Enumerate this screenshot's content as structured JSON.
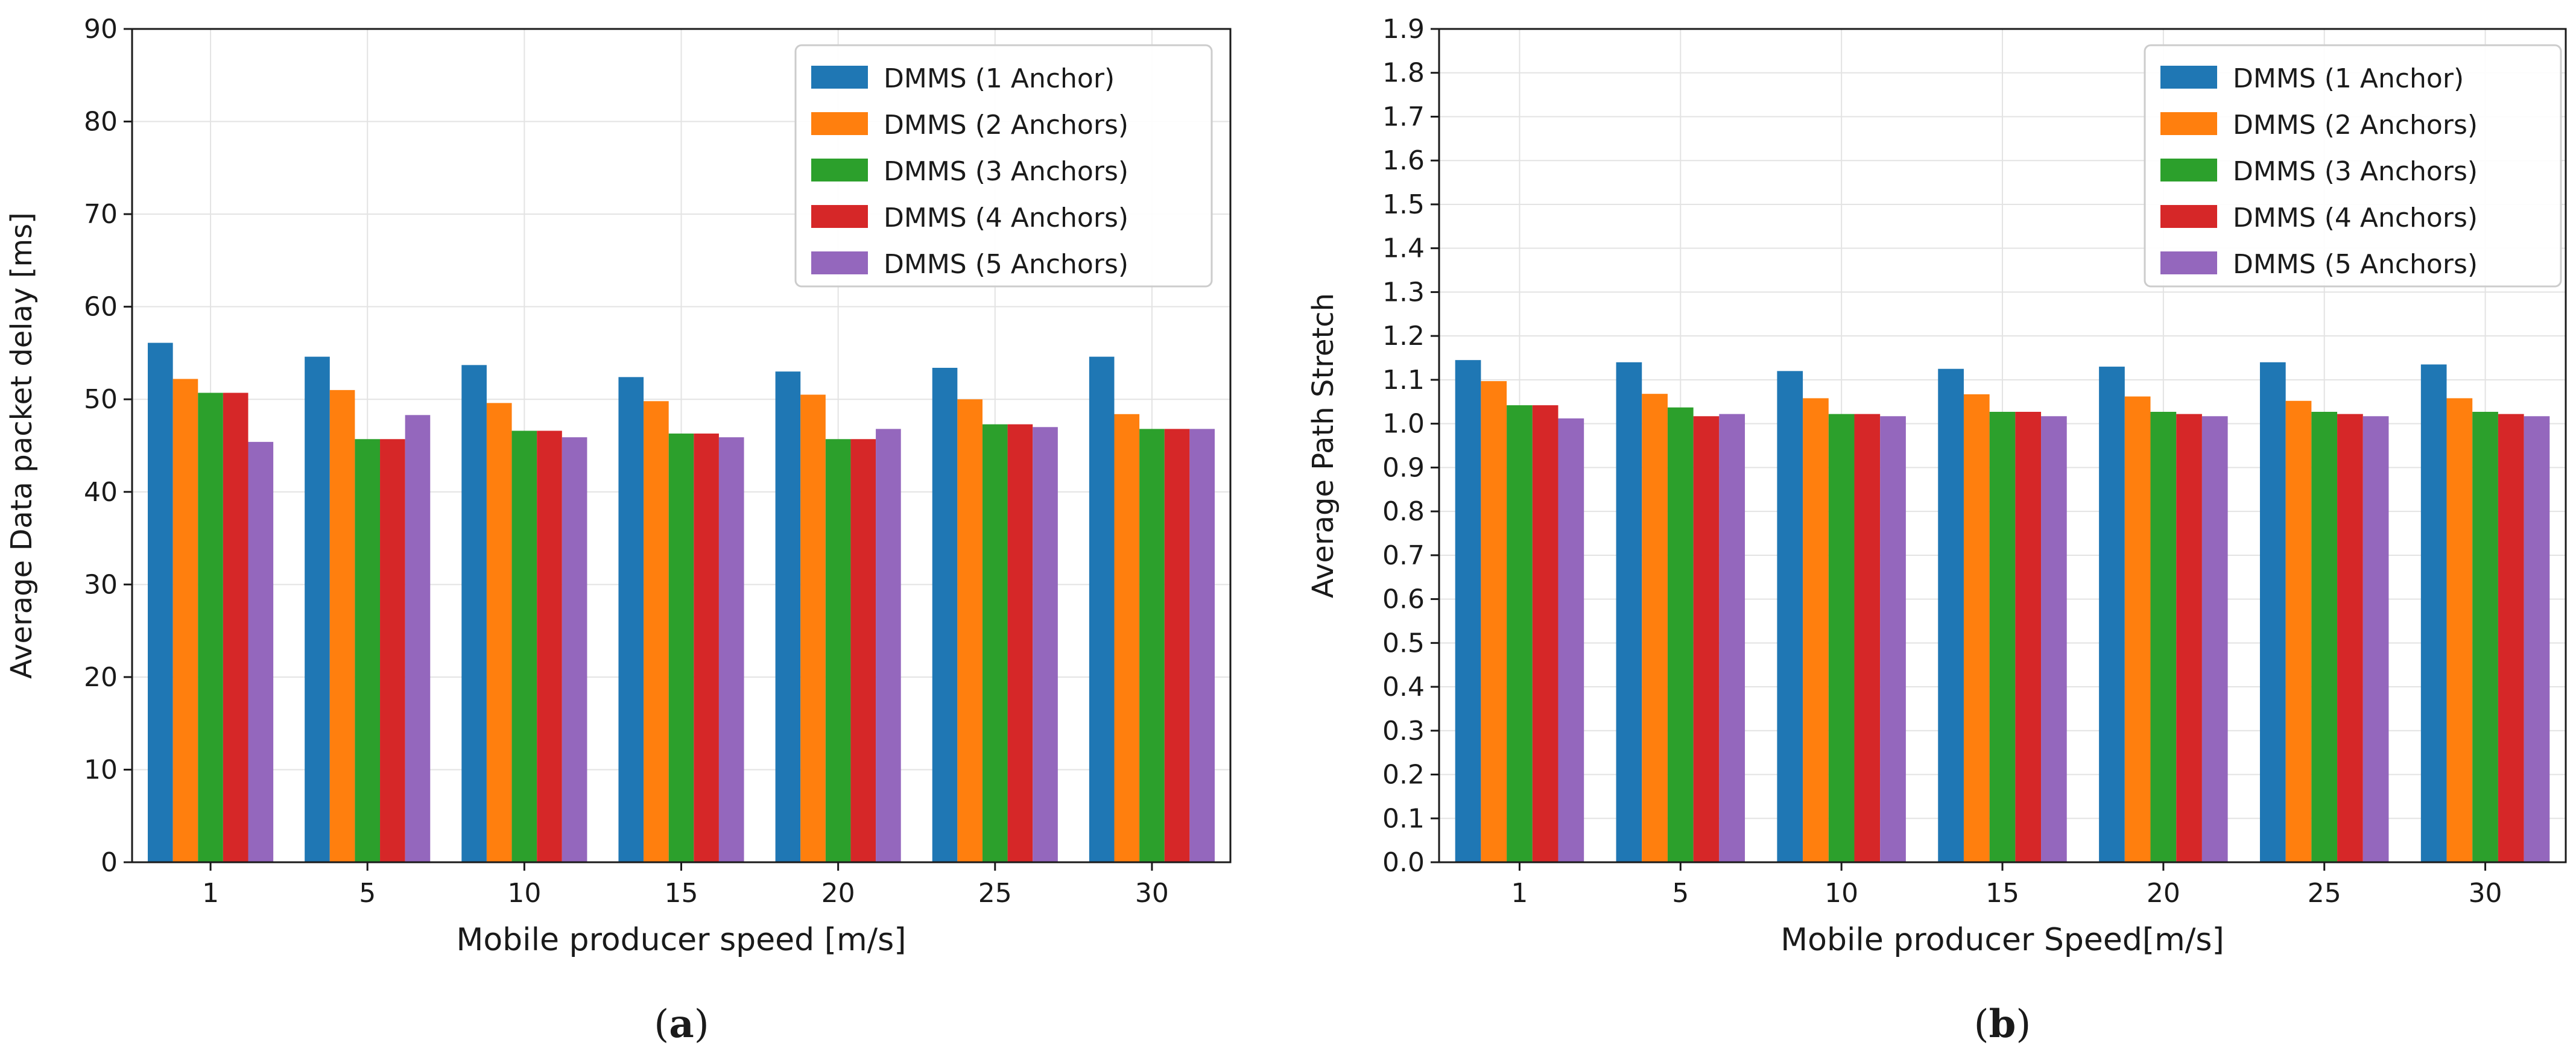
{
  "chart_data": [
    {
      "type": "bar",
      "panel_label": "a",
      "title": "",
      "xlabel": "Mobile producer speed [m/s]",
      "ylabel": "Average Data packet delay [ms]",
      "categories": [
        "1",
        "5",
        "10",
        "15",
        "20",
        "25",
        "30"
      ],
      "ylim": [
        0,
        90
      ],
      "yticks": [
        "0",
        "10",
        "20",
        "30",
        "40",
        "50",
        "60",
        "70",
        "80",
        "90"
      ],
      "grid": true,
      "legend_position": "top-right",
      "series": [
        {
          "name": "DMMS (1 Anchor)",
          "color": "#1f77b4",
          "values": [
            56.1,
            54.6,
            53.7,
            52.4,
            53.0,
            53.4,
            54.6
          ]
        },
        {
          "name": "DMMS (2 Anchors)",
          "color": "#ff7f0e",
          "values": [
            52.2,
            51.0,
            49.6,
            49.8,
            50.5,
            50.0,
            48.4
          ]
        },
        {
          "name": "DMMS (3 Anchors)",
          "color": "#2ca02c",
          "values": [
            50.7,
            45.7,
            46.6,
            46.3,
            45.7,
            47.3,
            46.8
          ]
        },
        {
          "name": "DMMS (4 Anchors)",
          "color": "#d62728",
          "values": [
            50.7,
            45.7,
            46.6,
            46.3,
            45.7,
            47.3,
            46.8
          ]
        },
        {
          "name": "DMMS (5 Anchors)",
          "color": "#9467bd",
          "values": [
            45.4,
            48.3,
            45.9,
            45.9,
            46.8,
            47.0,
            46.8
          ]
        }
      ]
    },
    {
      "type": "bar",
      "panel_label": "b",
      "title": "",
      "xlabel": "Mobile producer Speed[m/s]",
      "ylabel": "Average Path Stretch",
      "categories": [
        "1",
        "5",
        "10",
        "15",
        "20",
        "25",
        "30"
      ],
      "ylim": [
        0,
        1.9
      ],
      "yticks": [
        "0.0",
        "0.1",
        "0.2",
        "0.3",
        "0.4",
        "0.5",
        "0.6",
        "0.7",
        "0.8",
        "0.9",
        "1.0",
        "1.1",
        "1.2",
        "1.3",
        "1.4",
        "1.5",
        "1.6",
        "1.7",
        "1.8",
        "1.9"
      ],
      "grid": true,
      "legend_position": "top-right",
      "series": [
        {
          "name": "DMMS (1 Anchor)",
          "color": "#1f77b4",
          "values": [
            1.145,
            1.14,
            1.12,
            1.125,
            1.13,
            1.14,
            1.135
          ]
        },
        {
          "name": "DMMS (2 Anchors)",
          "color": "#ff7f0e",
          "values": [
            1.097,
            1.068,
            1.058,
            1.067,
            1.062,
            1.052,
            1.058
          ]
        },
        {
          "name": "DMMS (3 Anchors)",
          "color": "#2ca02c",
          "values": [
            1.042,
            1.037,
            1.022,
            1.027,
            1.027,
            1.027,
            1.027
          ]
        },
        {
          "name": "DMMS (4 Anchors)",
          "color": "#d62728",
          "values": [
            1.042,
            1.017,
            1.022,
            1.027,
            1.022,
            1.022,
            1.022
          ]
        },
        {
          "name": "DMMS (5 Anchors)",
          "color": "#9467bd",
          "values": [
            1.012,
            1.022,
            1.017,
            1.017,
            1.017,
            1.017,
            1.017
          ]
        }
      ]
    }
  ],
  "captions": [
    "a",
    "b"
  ]
}
